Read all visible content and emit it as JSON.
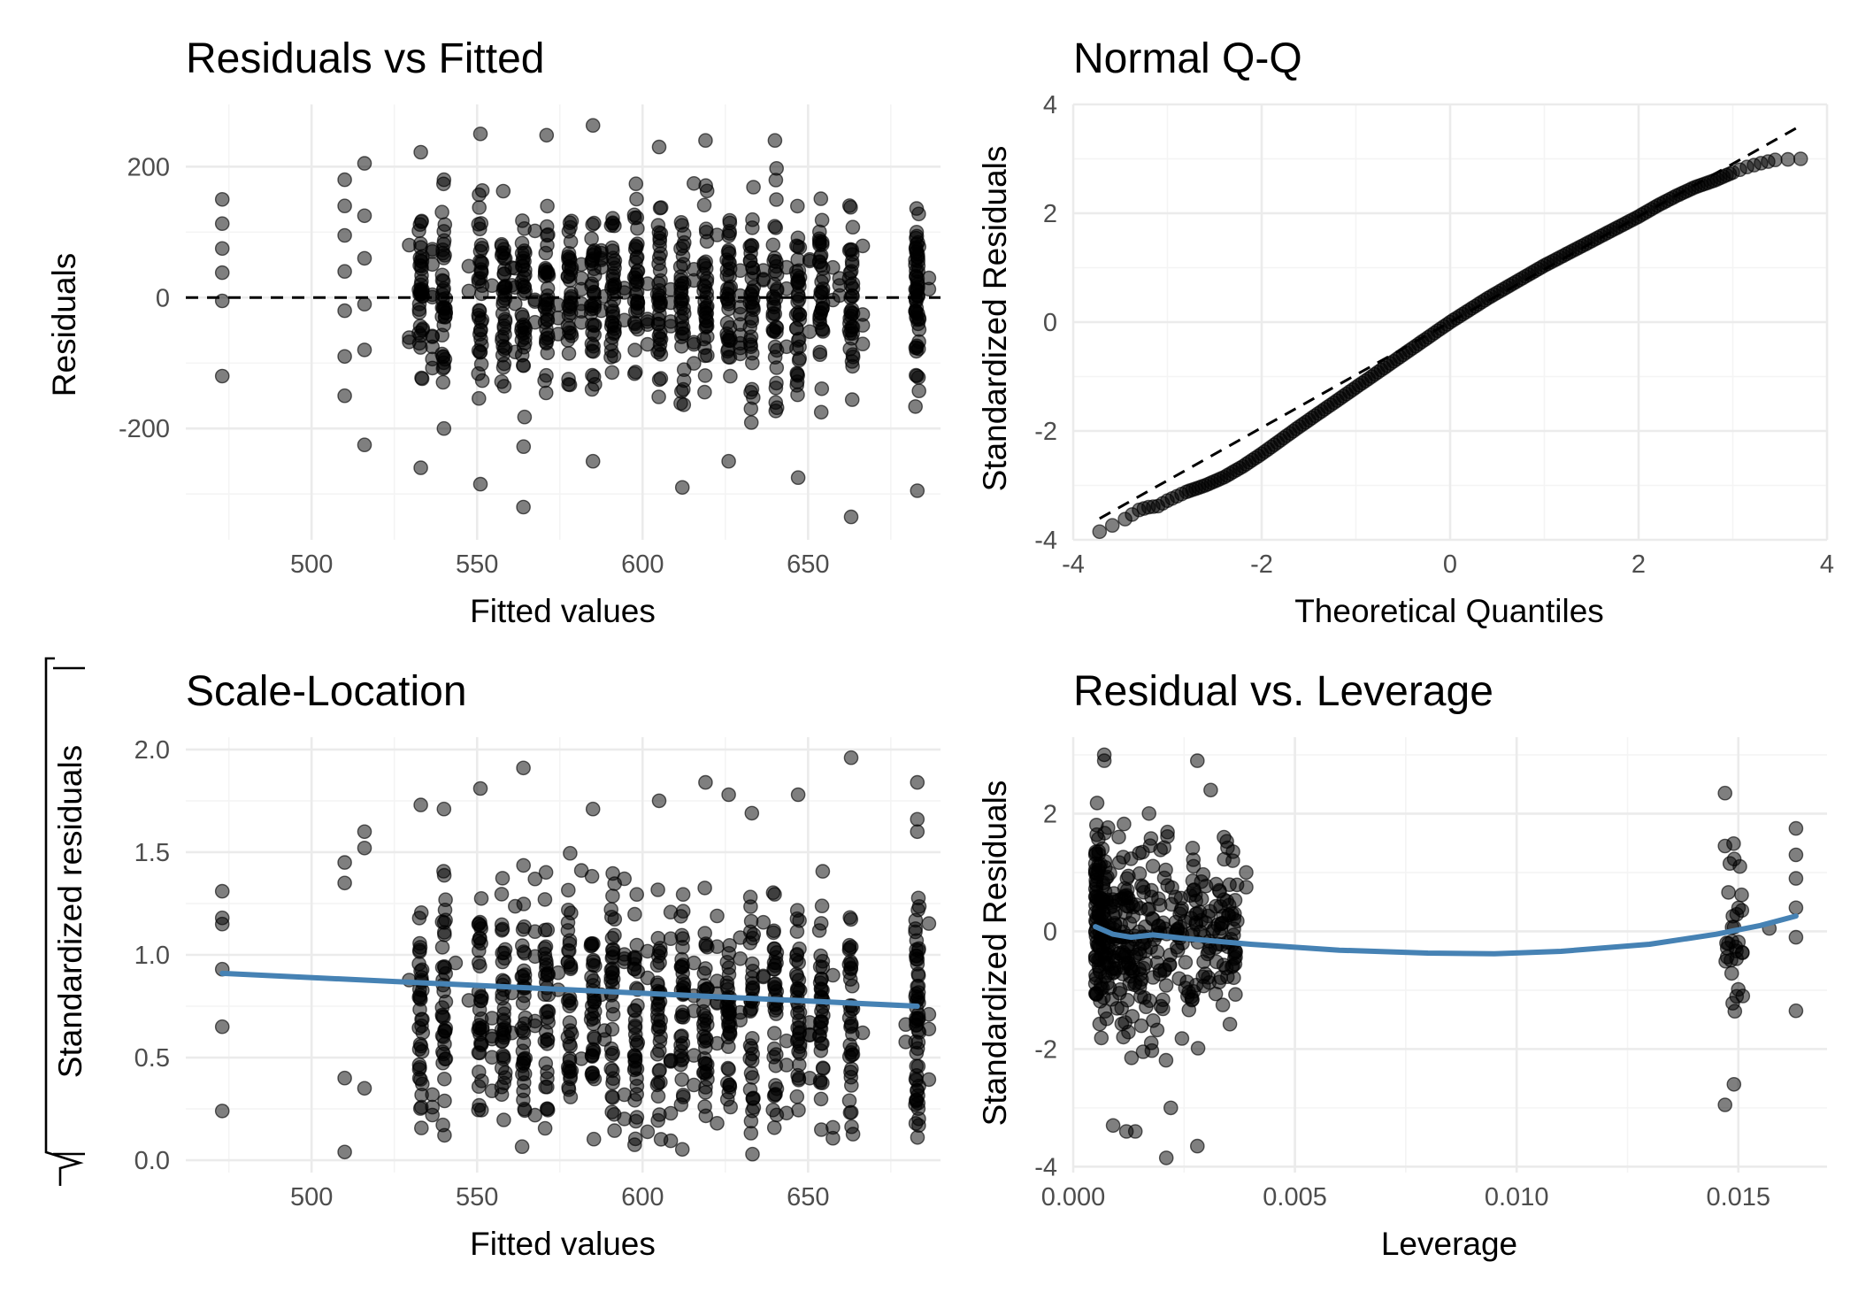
{
  "colors": {
    "points": "#000000",
    "smooth": "#4682B4",
    "grid": "#EBEBEB",
    "refline": "#000000"
  },
  "chart_data": [
    {
      "type": "scatter",
      "title": "Residuals vs Fitted",
      "xlabel": "Fitted values",
      "ylabel": "Residuals",
      "xlim": [
        462,
        690
      ],
      "ylim": [
        -370,
        295
      ],
      "x_ticks": [
        500,
        550,
        600,
        650
      ],
      "y_ticks": [
        -200,
        0,
        200
      ],
      "grid": true,
      "reference_line": {
        "y": 0,
        "style": "dashed"
      },
      "x_groups": [
        473,
        510,
        516,
        533,
        540,
        551,
        558,
        564,
        571,
        578,
        585,
        591,
        598,
        605,
        612,
        619,
        626,
        633,
        640,
        647,
        654,
        663,
        683
      ],
      "points": [
        [
          473,
          150
        ],
        [
          473,
          113
        ],
        [
          473,
          75
        ],
        [
          473,
          38
        ],
        [
          473,
          -5
        ],
        [
          473,
          -120
        ],
        [
          510,
          180
        ],
        [
          510,
          140
        ],
        [
          510,
          95
        ],
        [
          510,
          40
        ],
        [
          510,
          -20
        ],
        [
          510,
          -90
        ],
        [
          510,
          -150
        ],
        [
          516,
          205
        ],
        [
          516,
          125
        ],
        [
          516,
          60
        ],
        [
          516,
          -10
        ],
        [
          516,
          -80
        ],
        [
          516,
          -225
        ],
        [
          533,
          222
        ],
        [
          533,
          -260
        ],
        [
          540,
          180
        ],
        [
          540,
          -200
        ],
        [
          551,
          250
        ],
        [
          551,
          -285
        ],
        [
          564,
          -320
        ],
        [
          571,
          248
        ],
        [
          585,
          263
        ],
        [
          585,
          -250
        ],
        [
          605,
          230
        ],
        [
          612,
          -290
        ],
        [
          619,
          240
        ],
        [
          626,
          -250
        ],
        [
          640,
          240
        ],
        [
          647,
          -275
        ],
        [
          663,
          -335
        ],
        [
          683,
          -295
        ]
      ]
    },
    {
      "type": "scatter",
      "title": "Normal Q-Q",
      "xlabel": "Theoretical Quantiles",
      "ylabel": "Standardized Residuals",
      "xlim": [
        -4,
        4
      ],
      "ylim": [
        -4,
        4
      ],
      "x_ticks": [
        -4,
        -2,
        0,
        2,
        4
      ],
      "y_ticks": [
        -4,
        -2,
        0,
        2,
        4
      ],
      "grid": true,
      "reference_line": {
        "slope": 0.97,
        "intercept": 0,
        "style": "dashed"
      },
      "points": [
        [
          -3.72,
          -3.85
        ],
        [
          -3.45,
          -3.62
        ],
        [
          -3.3,
          -3.45
        ],
        [
          -3.2,
          -3.4
        ],
        [
          -3.1,
          -3.38
        ],
        [
          -3.0,
          -3.28
        ],
        [
          -2.9,
          -3.2
        ],
        [
          -2.8,
          -3.12
        ],
        [
          -2.6,
          -3.0
        ],
        [
          -2.4,
          -2.85
        ],
        [
          -2.2,
          -2.65
        ],
        [
          -2.0,
          -2.42
        ],
        [
          -1.8,
          -2.17
        ],
        [
          -1.6,
          -1.92
        ],
        [
          -1.4,
          -1.68
        ],
        [
          -1.2,
          -1.44
        ],
        [
          -1.0,
          -1.2
        ],
        [
          -0.8,
          -0.96
        ],
        [
          -0.6,
          -0.72
        ],
        [
          -0.4,
          -0.48
        ],
        [
          -0.2,
          -0.24
        ],
        [
          0.0,
          0.0
        ],
        [
          0.2,
          0.22
        ],
        [
          0.4,
          0.44
        ],
        [
          0.6,
          0.64
        ],
        [
          0.8,
          0.84
        ],
        [
          1.0,
          1.04
        ],
        [
          1.2,
          1.22
        ],
        [
          1.4,
          1.4
        ],
        [
          1.6,
          1.58
        ],
        [
          1.8,
          1.76
        ],
        [
          2.0,
          1.94
        ],
        [
          2.2,
          2.14
        ],
        [
          2.4,
          2.32
        ],
        [
          2.6,
          2.48
        ],
        [
          2.8,
          2.6
        ],
        [
          3.0,
          2.75
        ],
        [
          3.15,
          2.85
        ],
        [
          3.3,
          2.92
        ],
        [
          3.45,
          2.98
        ],
        [
          3.72,
          3.0
        ]
      ]
    },
    {
      "type": "scatter",
      "title": "Scale-Location",
      "xlabel": "Fitted values",
      "ylabel": "Standardized residuals",
      "xlim": [
        462,
        690
      ],
      "ylim": [
        -0.06,
        2.06
      ],
      "x_ticks": [
        500,
        550,
        600,
        650
      ],
      "y_ticks": [
        0.0,
        0.5,
        1.0,
        1.5,
        2.0
      ],
      "y_tick_labels": [
        "0.0",
        "0.5",
        "1.0",
        "1.5",
        "2.0"
      ],
      "grid": true,
      "smooth": {
        "x": [
          473,
          683
        ],
        "y": [
          0.91,
          0.75
        ]
      },
      "points": [
        [
          473,
          1.31
        ],
        [
          473,
          1.18
        ],
        [
          473,
          1.15
        ],
        [
          473,
          0.93
        ],
        [
          473,
          0.65
        ],
        [
          473,
          0.24
        ],
        [
          510,
          1.45
        ],
        [
          510,
          1.35
        ],
        [
          510,
          0.4
        ],
        [
          510,
          0.04
        ],
        [
          516,
          1.6
        ],
        [
          516,
          1.52
        ],
        [
          516,
          0.35
        ],
        [
          533,
          1.73
        ],
        [
          540,
          1.71
        ],
        [
          551,
          1.81
        ],
        [
          564,
          1.91
        ],
        [
          585,
          1.71
        ],
        [
          605,
          1.75
        ],
        [
          619,
          1.84
        ],
        [
          626,
          1.78
        ],
        [
          633,
          1.69
        ],
        [
          647,
          1.78
        ],
        [
          663,
          1.96
        ],
        [
          683,
          1.84
        ],
        [
          683,
          1.66
        ],
        [
          683,
          1.6
        ]
      ]
    },
    {
      "type": "scatter",
      "title": "Residual vs. Leverage",
      "xlabel": "Leverage",
      "ylabel": "Standardized Residuals",
      "xlim": [
        0,
        0.017
      ],
      "ylim": [
        -4.1,
        3.3
      ],
      "x_ticks": [
        0.0,
        0.005,
        0.01,
        0.015
      ],
      "x_tick_labels": [
        "0.000",
        "0.005",
        "0.010",
        "0.015"
      ],
      "y_ticks": [
        -4,
        -2,
        0,
        2
      ],
      "grid": true,
      "smooth": {
        "x": [
          0.0005,
          0.0009,
          0.0013,
          0.0018,
          0.0025,
          0.004,
          0.006,
          0.008,
          0.0095,
          0.011,
          0.013,
          0.0145,
          0.0155,
          0.0163
        ],
        "y": [
          0.08,
          -0.05,
          -0.1,
          -0.06,
          -0.12,
          -0.22,
          -0.32,
          -0.37,
          -0.38,
          -0.34,
          -0.22,
          -0.05,
          0.1,
          0.26
        ]
      },
      "points": [
        [
          0.0007,
          3.0
        ],
        [
          0.0007,
          2.9
        ],
        [
          0.0009,
          -3.3
        ],
        [
          0.0012,
          -3.4
        ],
        [
          0.0014,
          -3.4
        ],
        [
          0.0021,
          -3.85
        ],
        [
          0.0022,
          -3.0
        ],
        [
          0.0028,
          2.9
        ],
        [
          0.0028,
          -3.65
        ],
        [
          0.0031,
          2.4
        ],
        [
          0.0034,
          1.6
        ],
        [
          0.0036,
          1.2
        ],
        [
          0.0039,
          1.0
        ],
        [
          0.0039,
          0.75
        ],
        [
          0.0147,
          2.35
        ],
        [
          0.0147,
          1.45
        ],
        [
          0.0147,
          -2.95
        ],
        [
          0.0149,
          -2.6
        ],
        [
          0.0151,
          -1.1
        ],
        [
          0.0157,
          0.05
        ],
        [
          0.0163,
          1.75
        ],
        [
          0.0163,
          1.3
        ],
        [
          0.0163,
          0.9
        ],
        [
          0.0163,
          0.4
        ],
        [
          0.0163,
          -0.1
        ],
        [
          0.0163,
          -1.35
        ]
      ]
    }
  ]
}
